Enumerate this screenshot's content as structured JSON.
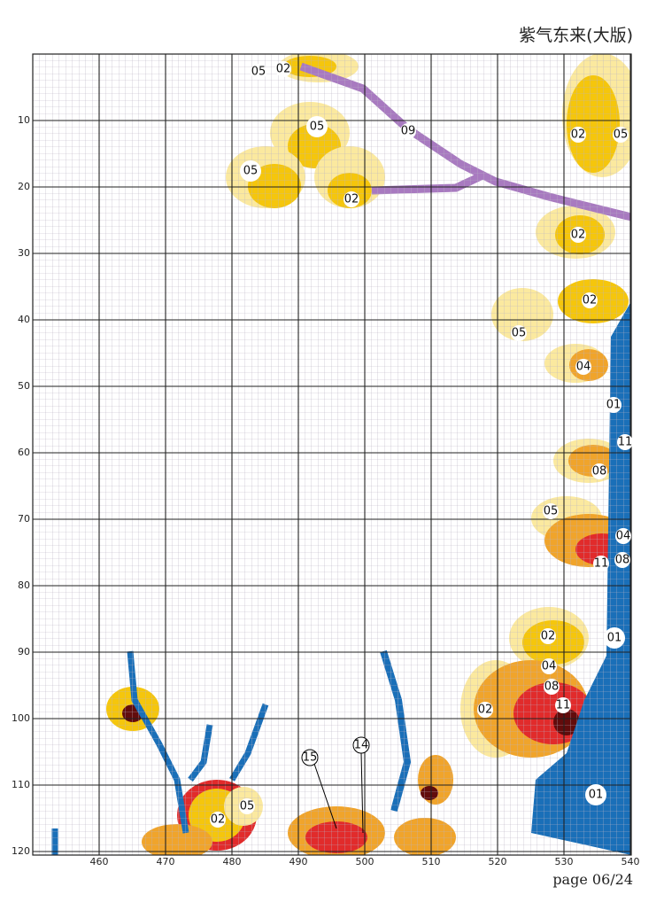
{
  "header": {
    "title": "紫气东来(大版)"
  },
  "grid": {
    "xticks": [
      460,
      470,
      480,
      490,
      500,
      510,
      520,
      530,
      540
    ],
    "yticks": [
      10,
      20,
      30,
      40,
      50,
      60,
      70,
      80,
      90,
      100,
      110,
      120
    ]
  },
  "symbols": [
    "05",
    "02",
    "05",
    "05",
    "02",
    "09",
    "02",
    "05",
    "02",
    "02",
    "05",
    "04",
    "01",
    "11",
    "08",
    "05",
    "04",
    "11",
    "08",
    "02",
    "01",
    "04",
    "08",
    "11",
    "02",
    "01",
    "02",
    "05",
    "15",
    "14"
  ],
  "footer": {
    "page": "page 06/24"
  }
}
